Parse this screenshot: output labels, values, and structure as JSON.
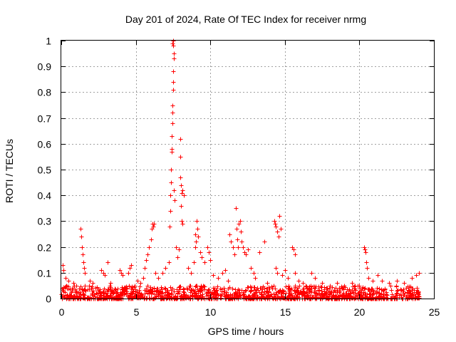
{
  "chart_data": {
    "type": "scatter",
    "title": "Day 201 of 2024, Rate Of TEC Index for receiver nrmg",
    "xlabel": "GPS time / hours",
    "ylabel": "ROTI / TECUs",
    "xlim": [
      0,
      25
    ],
    "ylim": [
      0,
      1
    ],
    "x_ticks": [
      "0",
      "5",
      "10",
      "15",
      "20",
      "25"
    ],
    "y_ticks": [
      "0",
      "0.1",
      "0.2",
      "0.3",
      "0.4",
      "0.5",
      "0.6",
      "0.7",
      "0.8",
      "0.9",
      "1"
    ],
    "grid": true,
    "marker": "+",
    "series_color": "#ff0000",
    "baseline": {
      "x_range": [
        0,
        24
      ],
      "y_range": [
        0,
        0.05
      ]
    },
    "points": [
      [
        0.1,
        0.13
      ],
      [
        0.15,
        0.11
      ],
      [
        0.3,
        0.08
      ],
      [
        0.5,
        0.07
      ],
      [
        0.8,
        0.06
      ],
      [
        1.0,
        0.05
      ],
      [
        1.3,
        0.27
      ],
      [
        1.35,
        0.24
      ],
      [
        1.4,
        0.2
      ],
      [
        1.45,
        0.17
      ],
      [
        1.5,
        0.14
      ],
      [
        1.55,
        0.12
      ],
      [
        1.6,
        0.1
      ],
      [
        1.9,
        0.07
      ],
      [
        2.1,
        0.06
      ],
      [
        2.7,
        0.11
      ],
      [
        2.8,
        0.1
      ],
      [
        2.9,
        0.09
      ],
      [
        3.1,
        0.14
      ],
      [
        3.3,
        0.06
      ],
      [
        3.9,
        0.11
      ],
      [
        4.0,
        0.1
      ],
      [
        4.1,
        0.09
      ],
      [
        4.5,
        0.1
      ],
      [
        4.6,
        0.12
      ],
      [
        4.7,
        0.13
      ],
      [
        5.1,
        0.07
      ],
      [
        5.3,
        0.06
      ],
      [
        5.5,
        0.08
      ],
      [
        5.6,
        0.12
      ],
      [
        5.7,
        0.15
      ],
      [
        5.8,
        0.17
      ],
      [
        5.9,
        0.2
      ],
      [
        6.0,
        0.23
      ],
      [
        6.05,
        0.27
      ],
      [
        6.1,
        0.29
      ],
      [
        6.15,
        0.28
      ],
      [
        6.2,
        0.29
      ],
      [
        6.3,
        0.1
      ],
      [
        6.5,
        0.08
      ],
      [
        6.8,
        0.1
      ],
      [
        7.0,
        0.12
      ],
      [
        7.2,
        0.14
      ],
      [
        7.25,
        0.28
      ],
      [
        7.3,
        0.34
      ],
      [
        7.3,
        0.4
      ],
      [
        7.35,
        0.45
      ],
      [
        7.35,
        0.5
      ],
      [
        7.4,
        0.57
      ],
      [
        7.4,
        0.58
      ],
      [
        7.4,
        0.63
      ],
      [
        7.45,
        0.68
      ],
      [
        7.45,
        0.72
      ],
      [
        7.45,
        0.75
      ],
      [
        7.5,
        0.81
      ],
      [
        7.5,
        0.84
      ],
      [
        7.5,
        0.88
      ],
      [
        7.55,
        0.93
      ],
      [
        7.55,
        0.95
      ],
      [
        7.5,
        0.98
      ],
      [
        7.45,
        0.99
      ],
      [
        7.5,
        1.0
      ],
      [
        7.55,
        0.42
      ],
      [
        7.6,
        0.38
      ],
      [
        7.7,
        0.2
      ],
      [
        7.8,
        0.16
      ],
      [
        7.9,
        0.19
      ],
      [
        8.0,
        0.62
      ],
      [
        8.0,
        0.55
      ],
      [
        8.0,
        0.47
      ],
      [
        8.05,
        0.44
      ],
      [
        8.1,
        0.41
      ],
      [
        8.15,
        0.42
      ],
      [
        8.2,
        0.4
      ],
      [
        8.05,
        0.36
      ],
      [
        8.1,
        0.3
      ],
      [
        8.15,
        0.29
      ],
      [
        8.5,
        0.12
      ],
      [
        8.7,
        0.1
      ],
      [
        8.9,
        0.14
      ],
      [
        9.0,
        0.2
      ],
      [
        9.0,
        0.25
      ],
      [
        9.05,
        0.22
      ],
      [
        9.1,
        0.3
      ],
      [
        9.15,
        0.27
      ],
      [
        9.2,
        0.24
      ],
      [
        9.3,
        0.18
      ],
      [
        9.4,
        0.16
      ],
      [
        9.6,
        0.14
      ],
      [
        9.8,
        0.2
      ],
      [
        9.9,
        0.18
      ],
      [
        10.0,
        0.15
      ],
      [
        10.2,
        0.09
      ],
      [
        10.5,
        0.08
      ],
      [
        10.8,
        0.1
      ],
      [
        11.0,
        0.11
      ],
      [
        11.2,
        0.07
      ],
      [
        11.3,
        0.25
      ],
      [
        11.4,
        0.22
      ],
      [
        11.5,
        0.2
      ],
      [
        11.6,
        0.17
      ],
      [
        11.7,
        0.35
      ],
      [
        11.75,
        0.27
      ],
      [
        11.8,
        0.23
      ],
      [
        11.85,
        0.2
      ],
      [
        11.9,
        0.29
      ],
      [
        12.0,
        0.3
      ],
      [
        12.05,
        0.26
      ],
      [
        12.1,
        0.22
      ],
      [
        12.2,
        0.2
      ],
      [
        12.3,
        0.18
      ],
      [
        12.4,
        0.17
      ],
      [
        12.5,
        0.19
      ],
      [
        12.7,
        0.12
      ],
      [
        12.9,
        0.1
      ],
      [
        13.0,
        0.08
      ],
      [
        13.3,
        0.18
      ],
      [
        13.6,
        0.22
      ],
      [
        13.8,
        0.06
      ],
      [
        14.3,
        0.3
      ],
      [
        14.35,
        0.29
      ],
      [
        14.4,
        0.28
      ],
      [
        14.5,
        0.26
      ],
      [
        14.6,
        0.24
      ],
      [
        14.65,
        0.32
      ],
      [
        14.7,
        0.27
      ],
      [
        14.4,
        0.12
      ],
      [
        14.5,
        0.1
      ],
      [
        14.8,
        0.09
      ],
      [
        15.0,
        0.11
      ],
      [
        15.2,
        0.08
      ],
      [
        15.5,
        0.2
      ],
      [
        15.6,
        0.19
      ],
      [
        15.7,
        0.17
      ],
      [
        15.7,
        0.1
      ],
      [
        15.9,
        0.07
      ],
      [
        16.2,
        0.06
      ],
      [
        16.8,
        0.1
      ],
      [
        17.0,
        0.08
      ],
      [
        17.5,
        0.06
      ],
      [
        18.0,
        0.05
      ],
      [
        18.5,
        0.06
      ],
      [
        19.0,
        0.05
      ],
      [
        19.5,
        0.06
      ],
      [
        20.0,
        0.05
      ],
      [
        20.3,
        0.2
      ],
      [
        20.35,
        0.19
      ],
      [
        20.4,
        0.18
      ],
      [
        20.45,
        0.14
      ],
      [
        20.5,
        0.12
      ],
      [
        20.6,
        0.08
      ],
      [
        20.9,
        0.07
      ],
      [
        21.2,
        0.09
      ],
      [
        21.5,
        0.07
      ],
      [
        22.0,
        0.06
      ],
      [
        22.5,
        0.07
      ],
      [
        23.0,
        0.06
      ],
      [
        23.5,
        0.08
      ],
      [
        23.8,
        0.09
      ],
      [
        24.0,
        0.1
      ]
    ]
  }
}
